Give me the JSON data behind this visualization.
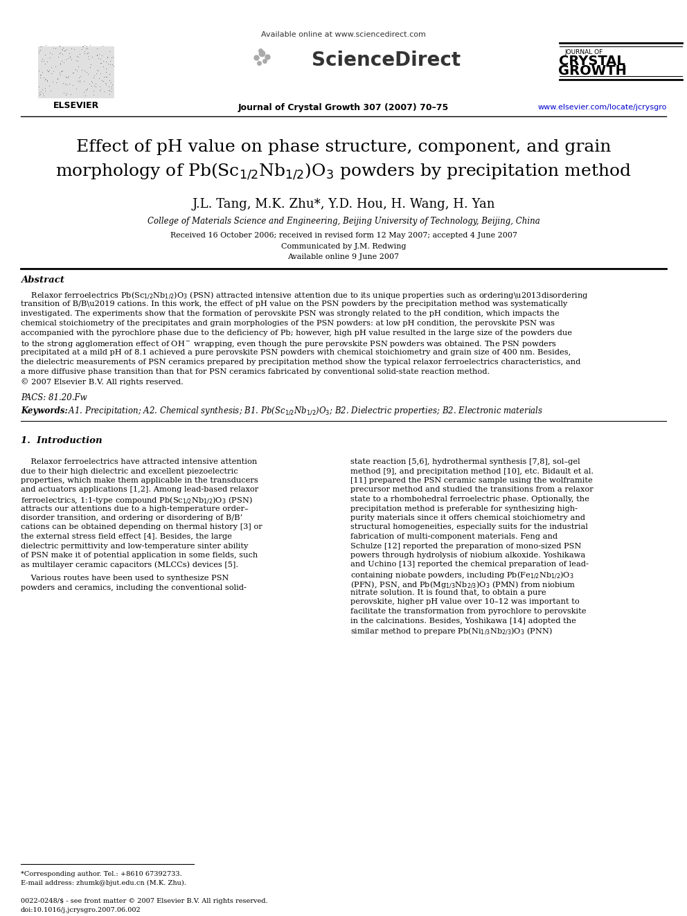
{
  "page_bg": "#ffffff",
  "header": {
    "available_online": "Available online at www.sciencedirect.com",
    "sciencedirect_text": "ScienceDirect",
    "journal_name_small": "JOURNAL OF",
    "journal_name_large1": "CRYSTAL",
    "journal_name_large2": "GROWTH",
    "journal_ref": "Journal of Crystal Growth 307 (2007) 70–75",
    "journal_url": "www.elsevier.com/locate/jcrysgro"
  },
  "title_line1": "Effect of pH value on phase structure, component, and grain",
  "title_line2": "morphology of Pb(Sc$_{1/2}$Nb$_{1/2}$)O$_3$ powders by precipitation method",
  "authors": "J.L. Tang, M.K. Zhu*, Y.D. Hou, H. Wang, H. Yan",
  "affiliation": "College of Materials Science and Engineering, Beijing University of Technology, Beijing, China",
  "received": "Received 16 October 2006; received in revised form 12 May 2007; accepted 4 June 2007",
  "communicated": "Communicated by J.M. Redwing",
  "available_online2": "Available online 9 June 2007",
  "abstract_title": "Abstract",
  "pacs": "PACS: 81.20.Fw",
  "keywords_label": "Keywords:",
  "keywords_text": " A1. Precipitation; A2. Chemical synthesis; B1. Pb(Sc$_{1/2}$Nb$_{1/2}$)O$_3$; B2. Dielectric properties; B2. Electronic materials",
  "section1_title": "1.  Introduction",
  "footer_left_line1": "*Corresponding author. Tel.: +8610 67392733.",
  "footer_left_line2": "E-mail address: zhumk@bjut.edu.cn (M.K. Zhu).",
  "footer_left_line3": "0022-0248/$ - see front matter © 2007 Elsevier B.V. All rights reserved.",
  "footer_left_line4": "doi:10.1016/j.jcrysgro.2007.06.002",
  "elsevier_text": "ELSEVIER"
}
